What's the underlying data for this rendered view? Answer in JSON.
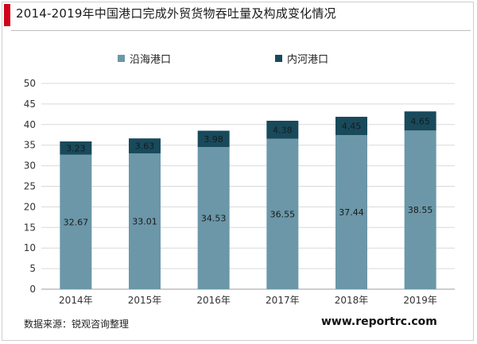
{
  "title": "2014-2019年中国港口完成外贸货物吞吐量及构成变化情况",
  "source": "数据来源：锐观咨询整理",
  "website": "www.reportrc.com",
  "colors": {
    "coastal": "#6b97a8",
    "inland": "#184a5c",
    "title_accent": "#d0021b"
  },
  "chart_data": {
    "type": "bar",
    "stacked": true,
    "categories": [
      "2014年",
      "2015年",
      "2016年",
      "2017年",
      "2018年",
      "2019年"
    ],
    "series": [
      {
        "name": "沿海港口",
        "values": [
          32.67,
          33.01,
          34.53,
          36.55,
          37.44,
          38.55
        ],
        "labels": [
          "32.67",
          "33.01",
          "34.53",
          "36.55",
          "37.44",
          "38.55"
        ]
      },
      {
        "name": "内河港口",
        "values": [
          3.23,
          3.63,
          3.98,
          4.38,
          4.45,
          4.65
        ],
        "labels": [
          "3.23",
          "3.63",
          "3.98",
          "4.38",
          "4.45",
          "4.65"
        ]
      }
    ],
    "ylim": [
      0,
      50
    ],
    "yticks": [
      "0",
      "5",
      "10",
      "15",
      "20",
      "25",
      "30",
      "35",
      "40",
      "45",
      "50"
    ],
    "grid": true,
    "legend_position": "top"
  }
}
